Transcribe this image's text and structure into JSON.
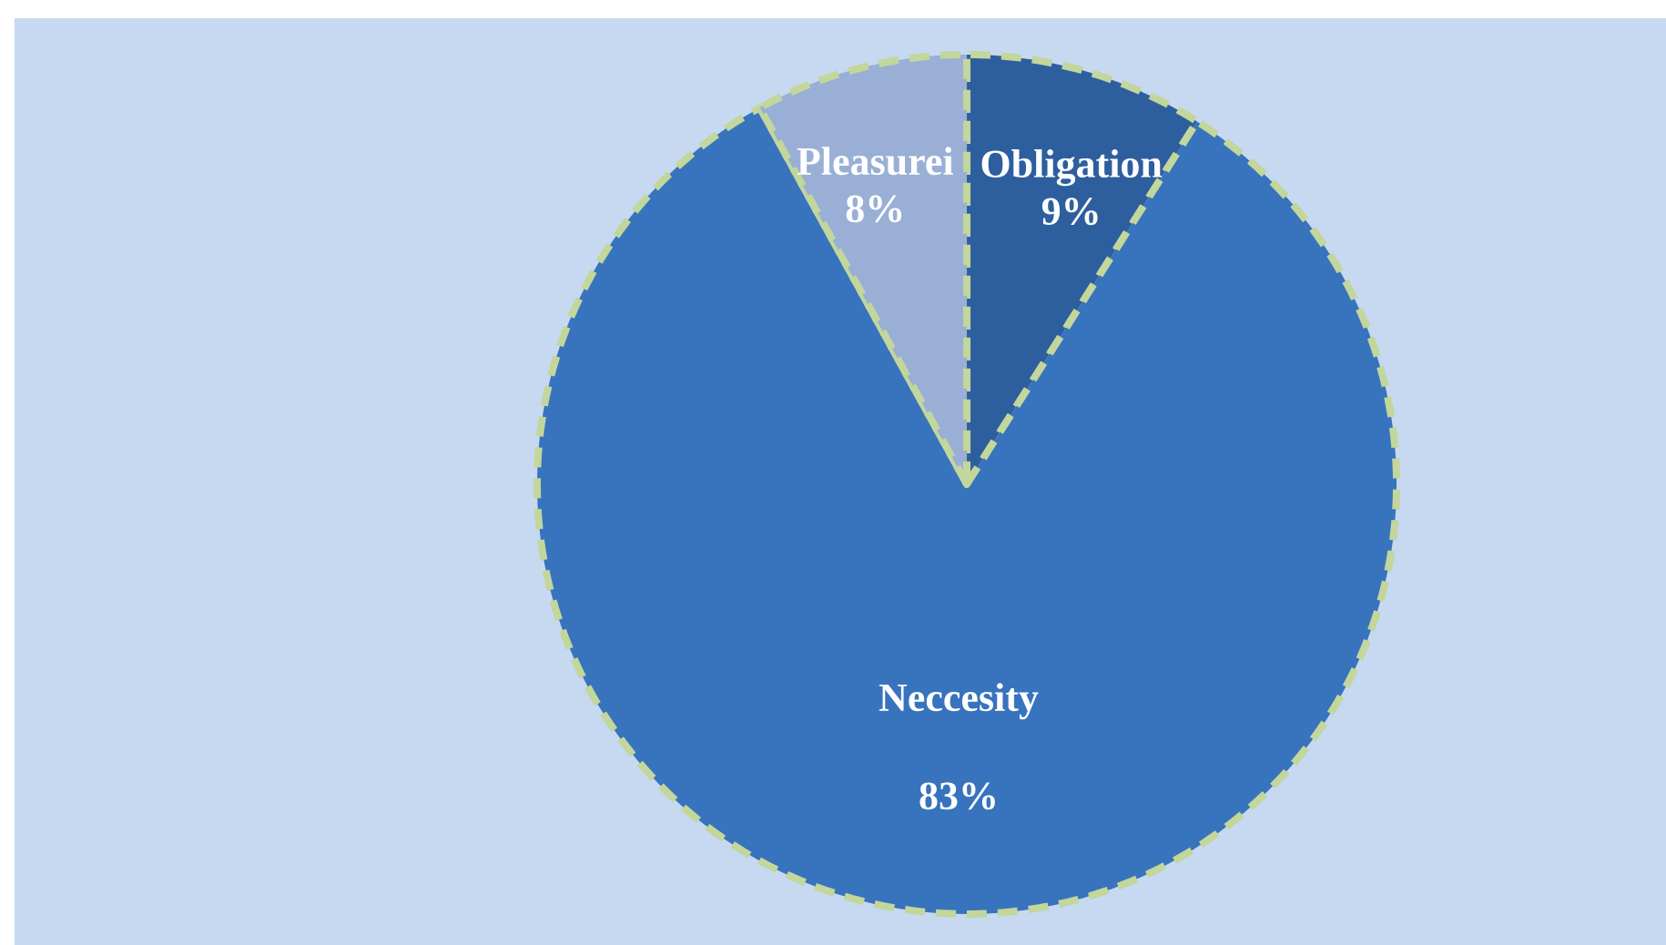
{
  "chart_data": {
    "type": "pie",
    "categories": [
      "Obligation",
      "Neccesity",
      "Pleasurei"
    ],
    "values": [
      9,
      83,
      8
    ],
    "colors": [
      "#2d5f9e",
      "#3873bd",
      "#9aafd5"
    ],
    "value_labels": [
      "9%",
      "83%",
      "8%"
    ]
  }
}
